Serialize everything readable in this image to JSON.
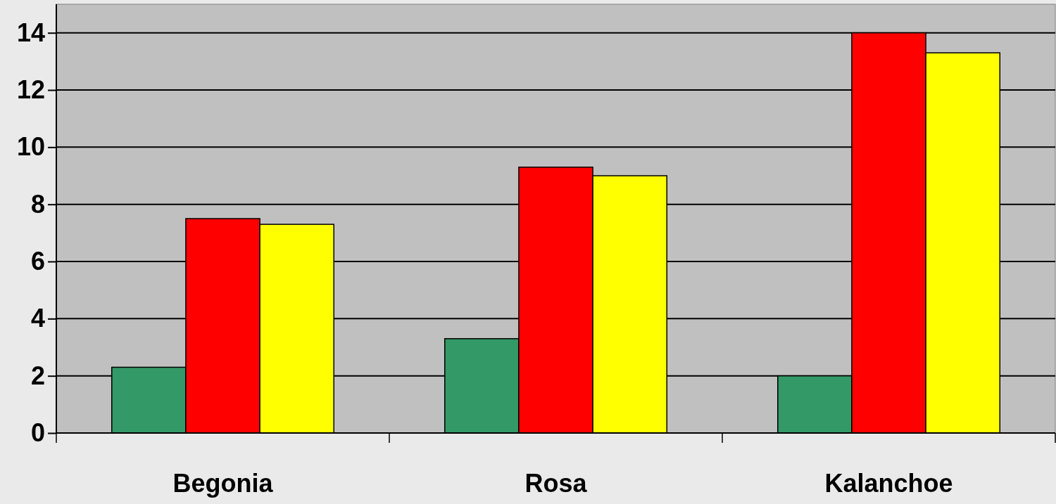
{
  "chart_data": {
    "type": "bar",
    "categories": [
      "Begonia",
      "Rosa",
      "Kalanchoe"
    ],
    "series": [
      {
        "color": "#339966",
        "values": [
          2.3,
          3.3,
          2.0
        ]
      },
      {
        "color": "#ff0000",
        "values": [
          7.5,
          9.3,
          14.0
        ]
      },
      {
        "color": "#ffff00",
        "values": [
          7.3,
          9.0,
          13.3
        ]
      }
    ],
    "ylim": [
      0,
      15
    ],
    "yticks": [
      0,
      2,
      4,
      6,
      8,
      10,
      12,
      14
    ],
    "grid": "y"
  }
}
